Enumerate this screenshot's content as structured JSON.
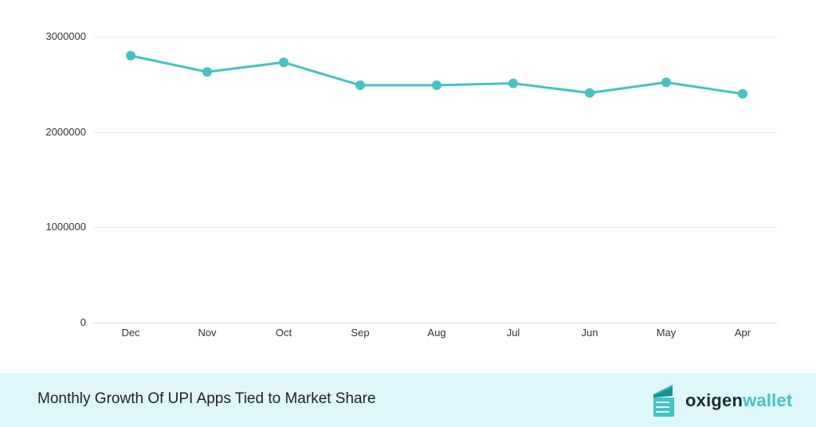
{
  "chart_data": {
    "type": "line",
    "title": "Monthly Growth Of UPI Apps Tied to Market Share",
    "xlabel": "",
    "ylabel": "",
    "categories": [
      "Dec",
      "Nov",
      "Oct",
      "Sep",
      "Aug",
      "Jul",
      "Jun",
      "May",
      "Apr"
    ],
    "series": [
      {
        "name": "UPI Apps",
        "color": "#45c2c4",
        "values": [
          2800000,
          2630000,
          2730000,
          2490000,
          2490000,
          2510000,
          2410000,
          2520000,
          2400000
        ]
      }
    ],
    "ylim": [
      0,
      3000000
    ],
    "yticks": [
      "0",
      "1000000",
      "2000000",
      "3000000"
    ],
    "grid": true,
    "legend": "none"
  },
  "footer": {
    "title": "Monthly Growth Of UPI Apps Tied to Market Share",
    "brand_part1": "oxigen",
    "brand_part2": "wallet"
  },
  "colors": {
    "line": "#45c2c4",
    "footer_bg": "#dff7fb",
    "grid": "#eeeeee",
    "brand_dark": "#1f2b33",
    "brand_teal": "#45c2c9"
  }
}
